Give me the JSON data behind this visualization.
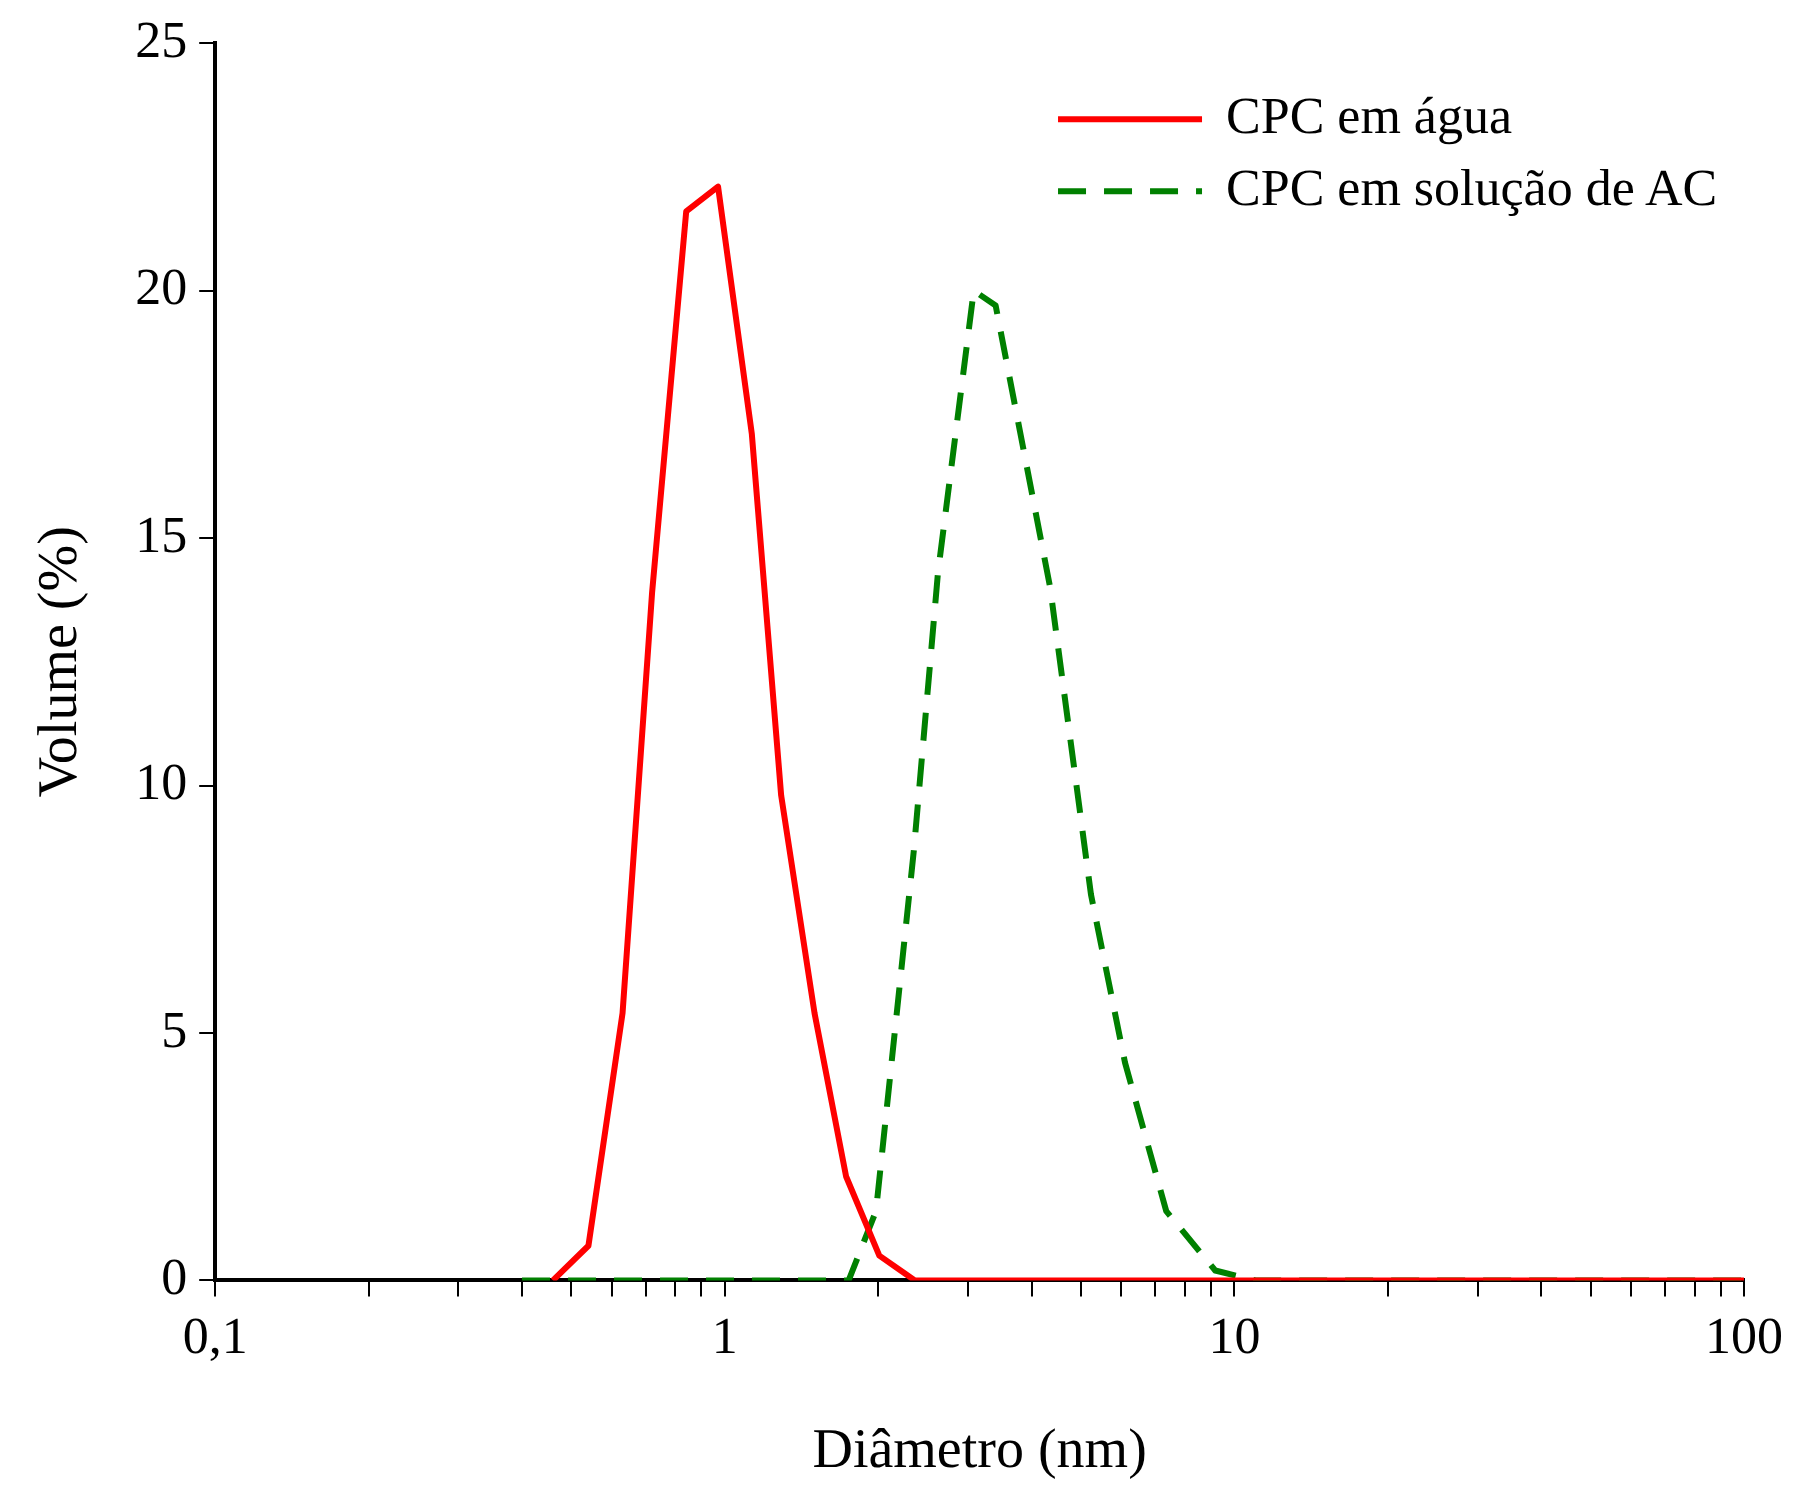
{
  "chart_data": {
    "type": "line",
    "xlabel": "Diâmetro (nm)",
    "ylabel": "Volume (%)",
    "log": "x",
    "legend": "top right",
    "grid": false,
    "marker": "none",
    "xlim": [
      0.1,
      100
    ],
    "ylim": [
      0,
      25
    ],
    "yticks": [
      0,
      5,
      10,
      15,
      20,
      25
    ],
    "xticks": [
      {
        "value": 0.1,
        "label": "0,1"
      },
      {
        "value": 0.2,
        "label": null
      },
      {
        "value": 0.3,
        "label": null
      },
      {
        "value": 0.4,
        "label": null
      },
      {
        "value": 0.5,
        "label": null
      },
      {
        "value": 0.6,
        "label": null
      },
      {
        "value": 0.7,
        "label": null
      },
      {
        "value": 0.8,
        "label": null
      },
      {
        "value": 0.9,
        "label": null
      },
      1,
      {
        "value": 2,
        "label": null
      },
      {
        "value": 3,
        "label": null
      },
      {
        "value": 4,
        "label": null
      },
      {
        "value": 5,
        "label": null
      },
      {
        "value": 6,
        "label": null
      },
      {
        "value": 7,
        "label": null
      },
      {
        "value": 8,
        "label": null
      },
      {
        "value": 9,
        "label": null
      },
      10,
      {
        "value": 20,
        "label": null
      },
      {
        "value": 30,
        "label": null
      },
      {
        "value": 40,
        "label": null
      },
      {
        "value": 50,
        "label": null
      },
      {
        "value": 60,
        "label": null
      },
      {
        "value": 70,
        "label": null
      },
      {
        "value": 80,
        "label": null
      },
      {
        "value": 90,
        "label": null
      },
      100
    ],
    "series": [
      {
        "name": "CPC em água",
        "color": "#ff0000",
        "line_style": "solid",
        "x": [
          0.46,
          0.54,
          0.63,
          0.72,
          0.84,
          0.97,
          1.13,
          1.29,
          1.5,
          1.73,
          2.01,
          2.36,
          3,
          10,
          100
        ],
        "values": [
          0,
          0.7,
          5.4,
          13.9,
          21.6,
          22.1,
          17.1,
          9.8,
          5.4,
          2.1,
          0.5,
          0,
          0,
          0,
          0
        ]
      },
      {
        "name": "CPC em solução de AC",
        "color": "#008000",
        "line_style": "dashed",
        "x": [
          0.4,
          1.75,
          1.98,
          2.35,
          2.62,
          3.08,
          3.4,
          4.35,
          5.23,
          6.1,
          7.35,
          9.17,
          11,
          100
        ],
        "values": [
          0,
          0,
          1.4,
          8.7,
          14.3,
          20,
          19.7,
          14,
          7.8,
          4.4,
          1.4,
          0.2,
          0,
          0
        ]
      }
    ]
  }
}
